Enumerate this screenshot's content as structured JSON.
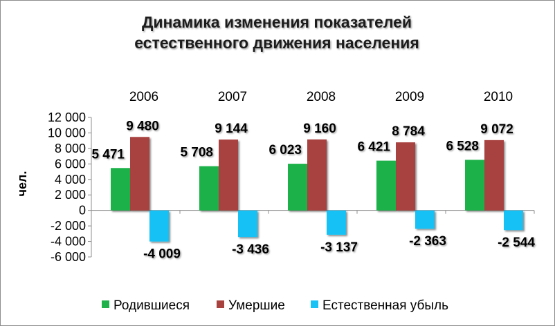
{
  "chart_data": {
    "type": "bar",
    "title": [
      "Динамика изменения показателей",
      "естественного движения населения"
    ],
    "ylabel": "чел.",
    "categories": [
      "2006",
      "2007",
      "2008",
      "2009",
      "2010"
    ],
    "ylim": [
      -6000,
      12000
    ],
    "yticks": [
      12000,
      10000,
      8000,
      6000,
      4000,
      2000,
      0,
      -2000,
      -4000,
      -6000
    ],
    "ytick_labels": [
      "12 000",
      "10 000",
      "8 000",
      "6 000",
      "4 000",
      "2 000",
      "0",
      "-2 000",
      "-4 000",
      "-6 000"
    ],
    "grid": false,
    "legend_position": "bottom",
    "series": [
      {
        "name": "Родившиеся",
        "color": "#1fb24a",
        "values": [
          5471,
          5708,
          6023,
          6421,
          6528
        ],
        "labels": [
          "5 471",
          "5 708",
          "6 023",
          "6 421",
          "6 528"
        ]
      },
      {
        "name": "Умершие",
        "color": "#a8423f",
        "values": [
          9480,
          9144,
          9160,
          8784,
          9072
        ],
        "labels": [
          "9 480",
          "9 144",
          "9 160",
          "8 784",
          "9 072"
        ]
      },
      {
        "name": "Естественная убыль",
        "color": "#19c2f5",
        "values": [
          -4009,
          -3436,
          -3137,
          -2363,
          -2544
        ],
        "labels": [
          "-4 009",
          "-3 436",
          "-3 137",
          "-2 363",
          "-2 544"
        ]
      }
    ]
  }
}
